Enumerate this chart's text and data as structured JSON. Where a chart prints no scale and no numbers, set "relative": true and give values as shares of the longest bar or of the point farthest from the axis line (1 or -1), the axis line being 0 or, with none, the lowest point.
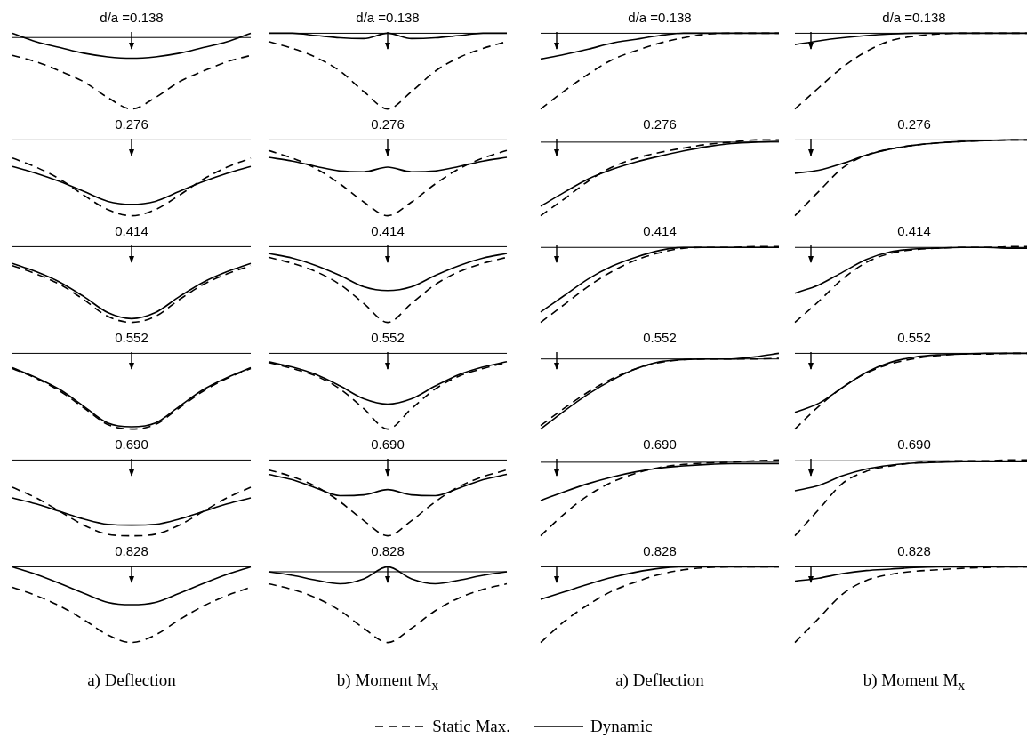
{
  "chart_data": [
    {
      "type": "line",
      "title": "d/a =0.138",
      "categories": [
        null,
        null,
        null,
        null,
        null,
        null,
        null,
        null,
        null,
        null,
        null
      ],
      "relative": true,
      "series": [
        {
          "color": "#000000",
          "line_style": "dashed",
          "values": [
            -0.25,
            -0.34,
            -0.47,
            -0.62,
            -0.84,
            -1,
            -0.84,
            -0.62,
            -0.47,
            -0.34,
            -0.25
          ]
        },
        {
          "color": "#000000",
          "line_style": "solid",
          "values": [
            0.06,
            -0.06,
            -0.14,
            -0.22,
            -0.27,
            -0.29,
            -0.27,
            -0.22,
            -0.14,
            -0.06,
            0.06
          ]
        }
      ]
    },
    {
      "type": "line",
      "title": "d/a =0.138",
      "categories": [
        null,
        null,
        null,
        null,
        null,
        null,
        null,
        null,
        null,
        null,
        null
      ],
      "relative": true,
      "series": [
        {
          "color": "#000000",
          "line_style": "dashed",
          "values": [
            -0.11,
            -0.2,
            -0.32,
            -0.5,
            -0.77,
            -1,
            -0.77,
            -0.5,
            -0.32,
            -0.2,
            -0.11
          ]
        },
        {
          "color": "#000000",
          "line_style": "solid",
          "values": [
            0,
            0,
            -0.03,
            -0.06,
            -0.07,
            0,
            -0.07,
            -0.06,
            -0.03,
            0,
            0
          ]
        }
      ]
    },
    {
      "type": "line",
      "title": "d/a =0.138",
      "categories": [
        null,
        null,
        null,
        null,
        null,
        null,
        null,
        null,
        null,
        null,
        null
      ],
      "relative": true,
      "series": [
        {
          "color": "#000000",
          "line_style": "dashed",
          "values": [
            -1,
            -0.76,
            -0.54,
            -0.35,
            -0.23,
            -0.13,
            -0.06,
            -0.01,
            0,
            0,
            0
          ]
        },
        {
          "color": "#000000",
          "line_style": "solid",
          "values": [
            -0.34,
            -0.28,
            -0.21,
            -0.13,
            -0.08,
            -0.03,
            0,
            0,
            0,
            0,
            0
          ]
        }
      ]
    },
    {
      "type": "line",
      "title": "d/a =0.138",
      "categories": [
        null,
        null,
        null,
        null,
        null,
        null,
        null,
        null,
        null,
        null,
        null
      ],
      "relative": true,
      "series": [
        {
          "color": "#000000",
          "line_style": "dashed",
          "values": [
            -1,
            -0.72,
            -0.45,
            -0.24,
            -0.1,
            -0.04,
            -0.01,
            0,
            0,
            0,
            0
          ]
        },
        {
          "color": "#000000",
          "line_style": "solid",
          "values": [
            -0.15,
            -0.1,
            -0.06,
            -0.03,
            -0.01,
            0,
            0,
            0,
            0,
            0,
            0
          ]
        }
      ]
    },
    {
      "type": "line",
      "title": "0.276",
      "categories": [
        null,
        null,
        null,
        null,
        null,
        null,
        null,
        null,
        null,
        null,
        null
      ],
      "relative": true,
      "series": [
        {
          "color": "#000000",
          "line_style": "dashed",
          "values": [
            -0.24,
            -0.36,
            -0.52,
            -0.73,
            -0.92,
            -1,
            -0.92,
            -0.73,
            -0.52,
            -0.36,
            -0.24
          ]
        },
        {
          "color": "#000000",
          "line_style": "solid",
          "values": [
            -0.35,
            -0.44,
            -0.55,
            -0.68,
            -0.81,
            -0.85,
            -0.81,
            -0.68,
            -0.55,
            -0.44,
            -0.35
          ]
        }
      ]
    },
    {
      "type": "line",
      "title": "0.276",
      "categories": [
        null,
        null,
        null,
        null,
        null,
        null,
        null,
        null,
        null,
        null,
        null
      ],
      "relative": true,
      "series": [
        {
          "color": "#000000",
          "line_style": "dashed",
          "values": [
            -0.14,
            -0.24,
            -0.38,
            -0.58,
            -0.82,
            -1,
            -0.82,
            -0.58,
            -0.38,
            -0.24,
            -0.14
          ]
        },
        {
          "color": "#000000",
          "line_style": "solid",
          "values": [
            -0.23,
            -0.28,
            -0.35,
            -0.41,
            -0.42,
            -0.36,
            -0.42,
            -0.41,
            -0.35,
            -0.28,
            -0.23
          ]
        }
      ]
    },
    {
      "type": "line",
      "title": "0.276",
      "categories": [
        null,
        null,
        null,
        null,
        null,
        null,
        null,
        null,
        null,
        null,
        null
      ],
      "relative": true,
      "series": [
        {
          "color": "#000000",
          "line_style": "dashed",
          "values": [
            -1,
            -0.77,
            -0.53,
            -0.34,
            -0.22,
            -0.14,
            -0.08,
            -0.03,
            0,
            0.03,
            0.03
          ]
        },
        {
          "color": "#000000",
          "line_style": "solid",
          "values": [
            -0.87,
            -0.68,
            -0.5,
            -0.37,
            -0.27,
            -0.19,
            -0.12,
            -0.06,
            -0.02,
            0,
            0.01
          ]
        }
      ]
    },
    {
      "type": "line",
      "title": "0.276",
      "categories": [
        null,
        null,
        null,
        null,
        null,
        null,
        null,
        null,
        null,
        null,
        null
      ],
      "relative": true,
      "series": [
        {
          "color": "#000000",
          "line_style": "dashed",
          "values": [
            -1,
            -0.68,
            -0.37,
            -0.2,
            -0.12,
            -0.07,
            -0.04,
            -0.02,
            -0.01,
            0,
            0
          ]
        },
        {
          "color": "#000000",
          "line_style": "solid",
          "values": [
            -0.44,
            -0.4,
            -0.31,
            -0.2,
            -0.12,
            -0.07,
            -0.04,
            -0.02,
            -0.01,
            0,
            0
          ]
        }
      ]
    },
    {
      "type": "line",
      "title": "0.414",
      "categories": [
        null,
        null,
        null,
        null,
        null,
        null,
        null,
        null,
        null,
        null,
        null
      ],
      "relative": true,
      "series": [
        {
          "color": "#000000",
          "line_style": "dashed",
          "values": [
            -0.25,
            -0.36,
            -0.5,
            -0.7,
            -0.92,
            -1,
            -0.92,
            -0.7,
            -0.5,
            -0.36,
            -0.25
          ]
        },
        {
          "color": "#000000",
          "line_style": "solid",
          "values": [
            -0.22,
            -0.33,
            -0.47,
            -0.66,
            -0.87,
            -0.95,
            -0.87,
            -0.66,
            -0.47,
            -0.33,
            -0.22
          ]
        }
      ]
    },
    {
      "type": "line",
      "title": "0.414",
      "categories": [
        null,
        null,
        null,
        null,
        null,
        null,
        null,
        null,
        null,
        null,
        null
      ],
      "relative": true,
      "series": [
        {
          "color": "#000000",
          "line_style": "dashed",
          "values": [
            -0.14,
            -0.22,
            -0.33,
            -0.5,
            -0.75,
            -1,
            -0.75,
            -0.5,
            -0.33,
            -0.22,
            -0.14
          ]
        },
        {
          "color": "#000000",
          "line_style": "solid",
          "values": [
            -0.09,
            -0.15,
            -0.25,
            -0.38,
            -0.53,
            -0.58,
            -0.53,
            -0.38,
            -0.25,
            -0.15,
            -0.09
          ]
        }
      ]
    },
    {
      "type": "line",
      "title": "0.414",
      "categories": [
        null,
        null,
        null,
        null,
        null,
        null,
        null,
        null,
        null,
        null,
        null
      ],
      "relative": true,
      "series": [
        {
          "color": "#000000",
          "line_style": "dashed",
          "values": [
            -1,
            -0.76,
            -0.52,
            -0.32,
            -0.17,
            -0.07,
            -0.01,
            0,
            0,
            0.01,
            0.01
          ]
        },
        {
          "color": "#000000",
          "line_style": "solid",
          "values": [
            -0.86,
            -0.64,
            -0.42,
            -0.25,
            -0.13,
            -0.04,
            0,
            0,
            0,
            0,
            0
          ]
        }
      ]
    },
    {
      "type": "line",
      "title": "0.414",
      "categories": [
        null,
        null,
        null,
        null,
        null,
        null,
        null,
        null,
        null,
        null,
        null
      ],
      "relative": true,
      "series": [
        {
          "color": "#000000",
          "line_style": "dashed",
          "values": [
            -1,
            -0.72,
            -0.42,
            -0.2,
            -0.08,
            -0.03,
            -0.01,
            0,
            0,
            0.01,
            0.01
          ]
        },
        {
          "color": "#000000",
          "line_style": "solid",
          "values": [
            -0.61,
            -0.5,
            -0.33,
            -0.16,
            -0.06,
            -0.02,
            -0.01,
            0,
            0,
            -0.01,
            -0.01
          ]
        }
      ]
    },
    {
      "type": "line",
      "title": "0.552",
      "categories": [
        null,
        null,
        null,
        null,
        null,
        null,
        null,
        null,
        null,
        null,
        null
      ],
      "relative": true,
      "series": [
        {
          "color": "#000000",
          "line_style": "dashed",
          "values": [
            -0.2,
            -0.33,
            -0.5,
            -0.72,
            -0.94,
            -1,
            -0.94,
            -0.72,
            -0.5,
            -0.33,
            -0.2
          ]
        },
        {
          "color": "#000000",
          "line_style": "solid",
          "values": [
            -0.19,
            -0.32,
            -0.48,
            -0.7,
            -0.92,
            -0.97,
            -0.92,
            -0.7,
            -0.48,
            -0.32,
            -0.19
          ]
        }
      ]
    },
    {
      "type": "line",
      "title": "0.552",
      "categories": [
        null,
        null,
        null,
        null,
        null,
        null,
        null,
        null,
        null,
        null,
        null
      ],
      "relative": true,
      "series": [
        {
          "color": "#000000",
          "line_style": "dashed",
          "values": [
            -0.12,
            -0.2,
            -0.3,
            -0.47,
            -0.73,
            -1,
            -0.73,
            -0.47,
            -0.3,
            -0.2,
            -0.12
          ]
        },
        {
          "color": "#000000",
          "line_style": "solid",
          "values": [
            -0.11,
            -0.18,
            -0.28,
            -0.43,
            -0.6,
            -0.67,
            -0.6,
            -0.43,
            -0.28,
            -0.18,
            -0.11
          ]
        }
      ]
    },
    {
      "type": "line",
      "title": "0.552",
      "categories": [
        null,
        null,
        null,
        null,
        null,
        null,
        null,
        null,
        null,
        null,
        null
      ],
      "relative": true,
      "series": [
        {
          "color": "#000000",
          "line_style": "dashed",
          "values": [
            -0.95,
            -0.7,
            -0.47,
            -0.28,
            -0.14,
            -0.05,
            -0.01,
            0,
            0,
            0,
            0.01
          ]
        },
        {
          "color": "#000000",
          "line_style": "solid",
          "values": [
            -1,
            -0.74,
            -0.5,
            -0.3,
            -0.14,
            -0.04,
            -0.01,
            0,
            0,
            0.03,
            0.08
          ]
        }
      ]
    },
    {
      "type": "line",
      "title": "0.552",
      "categories": [
        null,
        null,
        null,
        null,
        null,
        null,
        null,
        null,
        null,
        null,
        null
      ],
      "relative": true,
      "series": [
        {
          "color": "#000000",
          "line_style": "dashed",
          "values": [
            -1,
            -0.7,
            -0.45,
            -0.26,
            -0.14,
            -0.07,
            -0.03,
            -0.01,
            -0.01,
            0,
            0
          ]
        },
        {
          "color": "#000000",
          "line_style": "solid",
          "values": [
            -0.78,
            -0.66,
            -0.45,
            -0.25,
            -0.12,
            -0.05,
            -0.02,
            -0.01,
            0,
            0,
            0
          ]
        }
      ]
    },
    {
      "type": "line",
      "title": "0.690",
      "categories": [
        null,
        null,
        null,
        null,
        null,
        null,
        null,
        null,
        null,
        null,
        null
      ],
      "relative": true,
      "series": [
        {
          "color": "#000000",
          "line_style": "dashed",
          "values": [
            -0.36,
            -0.5,
            -0.68,
            -0.86,
            -0.98,
            -1,
            -0.98,
            -0.86,
            -0.68,
            -0.5,
            -0.36
          ]
        },
        {
          "color": "#000000",
          "line_style": "solid",
          "values": [
            -0.5,
            -0.58,
            -0.68,
            -0.78,
            -0.85,
            -0.86,
            -0.85,
            -0.78,
            -0.68,
            -0.58,
            -0.5
          ]
        }
      ]
    },
    {
      "type": "line",
      "title": "0.690",
      "categories": [
        null,
        null,
        null,
        null,
        null,
        null,
        null,
        null,
        null,
        null,
        null
      ],
      "relative": true,
      "series": [
        {
          "color": "#000000",
          "line_style": "dashed",
          "values": [
            -0.13,
            -0.22,
            -0.35,
            -0.55,
            -0.8,
            -1,
            -0.8,
            -0.55,
            -0.35,
            -0.22,
            -0.13
          ]
        },
        {
          "color": "#000000",
          "line_style": "solid",
          "values": [
            -0.19,
            -0.26,
            -0.37,
            -0.47,
            -0.46,
            -0.39,
            -0.46,
            -0.47,
            -0.37,
            -0.26,
            -0.19
          ]
        }
      ]
    },
    {
      "type": "line",
      "title": "0.690",
      "categories": [
        null,
        null,
        null,
        null,
        null,
        null,
        null,
        null,
        null,
        null,
        null
      ],
      "relative": true,
      "series": [
        {
          "color": "#000000",
          "line_style": "dashed",
          "values": [
            -1,
            -0.7,
            -0.45,
            -0.27,
            -0.15,
            -0.07,
            -0.03,
            -0.01,
            0,
            0.02,
            0.03
          ]
        },
        {
          "color": "#000000",
          "line_style": "solid",
          "values": [
            -0.52,
            -0.4,
            -0.29,
            -0.2,
            -0.13,
            -0.08,
            -0.05,
            -0.03,
            -0.02,
            -0.02,
            -0.02
          ]
        }
      ]
    },
    {
      "type": "line",
      "title": "0.690",
      "categories": [
        null,
        null,
        null,
        null,
        null,
        null,
        null,
        null,
        null,
        null,
        null
      ],
      "relative": true,
      "series": [
        {
          "color": "#000000",
          "line_style": "dashed",
          "values": [
            -1,
            -0.65,
            -0.3,
            -0.14,
            -0.07,
            -0.03,
            -0.01,
            0,
            0,
            0.01,
            0.01
          ]
        },
        {
          "color": "#000000",
          "line_style": "solid",
          "values": [
            -0.4,
            -0.33,
            -0.2,
            -0.11,
            -0.06,
            -0.03,
            -0.02,
            -0.01,
            -0.01,
            -0.01,
            -0.01
          ]
        }
      ]
    },
    {
      "type": "line",
      "title": "0.828",
      "xlabel": "a) Deflection",
      "categories": [
        null,
        null,
        null,
        null,
        null,
        null,
        null,
        null,
        null,
        null,
        null
      ],
      "relative": true,
      "series": [
        {
          "color": "#000000",
          "line_style": "dashed",
          "values": [
            -0.27,
            -0.38,
            -0.52,
            -0.7,
            -0.9,
            -1,
            -0.9,
            -0.7,
            -0.52,
            -0.38,
            -0.27
          ]
        },
        {
          "color": "#000000",
          "line_style": "solid",
          "values": [
            0,
            -0.1,
            -0.22,
            -0.35,
            -0.47,
            -0.5,
            -0.47,
            -0.35,
            -0.22,
            -0.1,
            0
          ]
        }
      ]
    },
    {
      "type": "line",
      "title": "0.828",
      "xlabel": "b) Moment M$_{x}$",
      "categories": [
        null,
        null,
        null,
        null,
        null,
        null,
        null,
        null,
        null,
        null,
        null
      ],
      "relative": true,
      "series": [
        {
          "color": "#000000",
          "line_style": "dashed",
          "values": [
            -0.17,
            -0.25,
            -0.37,
            -0.55,
            -0.8,
            -1,
            -0.8,
            -0.55,
            -0.37,
            -0.25,
            -0.17
          ]
        },
        {
          "color": "#000000",
          "line_style": "solid",
          "values": [
            0,
            -0.05,
            -0.12,
            -0.17,
            -0.1,
            0.07,
            -0.1,
            -0.17,
            -0.12,
            -0.05,
            0
          ]
        }
      ]
    },
    {
      "type": "line",
      "title": "0.828",
      "xlabel": "a) Deflection",
      "categories": [
        null,
        null,
        null,
        null,
        null,
        null,
        null,
        null,
        null,
        null,
        null
      ],
      "relative": true,
      "series": [
        {
          "color": "#000000",
          "line_style": "dashed",
          "values": [
            -1,
            -0.72,
            -0.5,
            -0.32,
            -0.2,
            -0.1,
            -0.04,
            -0.01,
            0,
            0,
            0
          ]
        },
        {
          "color": "#000000",
          "line_style": "solid",
          "values": [
            -0.43,
            -0.33,
            -0.23,
            -0.14,
            -0.07,
            -0.02,
            0,
            0,
            0,
            0,
            0
          ]
        }
      ]
    },
    {
      "type": "line",
      "title": "0.828",
      "xlabel": "b) Moment M$_{x}$",
      "legend": "bottom",
      "categories": [
        null,
        null,
        null,
        null,
        null,
        null,
        null,
        null,
        null,
        null,
        null
      ],
      "relative": true,
      "series": [
        {
          "name": "Static Max.",
          "color": "#000000",
          "line_style": "dashed",
          "values": [
            -1,
            -0.68,
            -0.36,
            -0.18,
            -0.1,
            -0.06,
            -0.04,
            -0.02,
            -0.01,
            0,
            0
          ]
        },
        {
          "name": "Dynamic",
          "color": "#000000",
          "line_style": "solid",
          "values": [
            -0.19,
            -0.15,
            -0.09,
            -0.05,
            -0.03,
            -0.01,
            0,
            0,
            0,
            0,
            0
          ]
        }
      ]
    }
  ]
}
